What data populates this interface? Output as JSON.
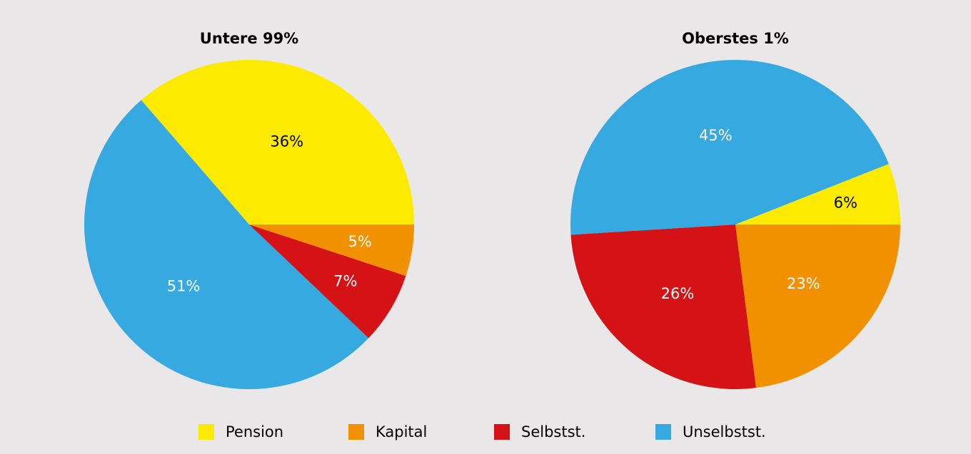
{
  "chart_data": {
    "type": "pie",
    "categories": [
      "Pension",
      "Kapital",
      "Selbstst.",
      "Unselbstst."
    ],
    "colors": [
      "#fcea00",
      "#f29100",
      "#d51317",
      "#36a9e1"
    ],
    "series": [
      {
        "name": "Untere 99%",
        "values": [
          36,
          5,
          7,
          51
        ]
      },
      {
        "name": "Oberstes 1%",
        "values": [
          6,
          23,
          26,
          45
        ]
      }
    ],
    "value_labels": [
      [
        "36%",
        "5%",
        "7%",
        "51%"
      ],
      [
        "6%",
        "23%",
        "26%",
        "45%"
      ]
    ]
  }
}
